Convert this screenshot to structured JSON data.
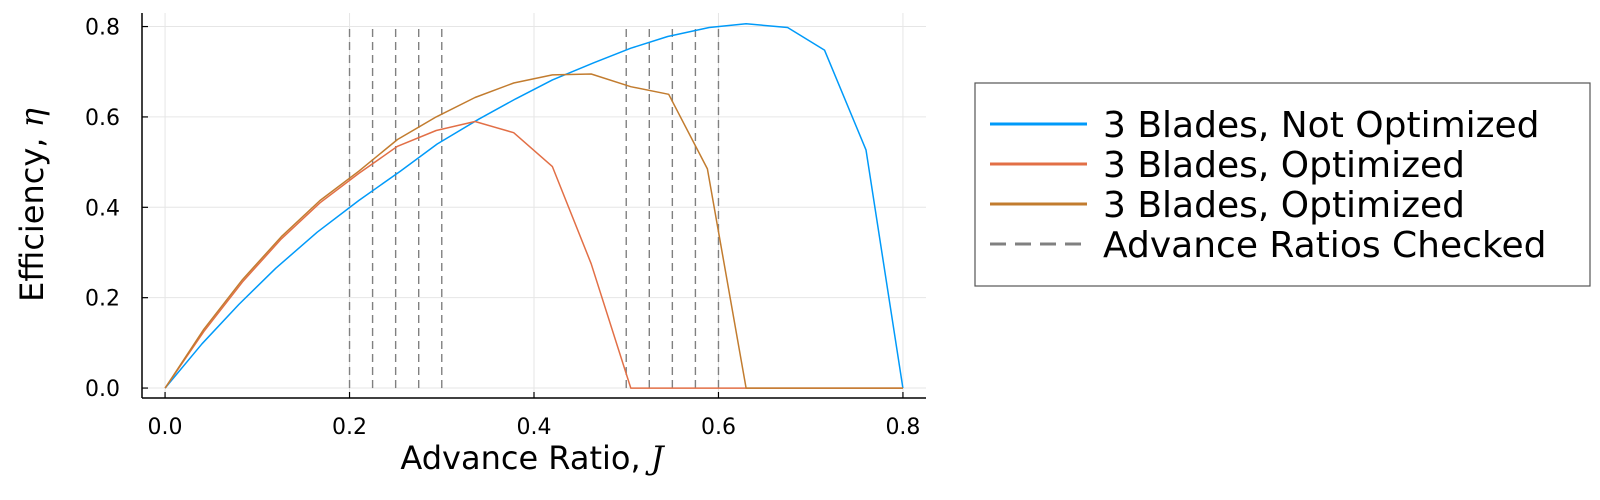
{
  "chart_data": {
    "type": "line",
    "xlabel": "Advance Ratio, ",
    "xlabel_symbol": "J",
    "ylabel": "Efficiency, ",
    "ylabel_symbol": "η",
    "xlim": [
      -0.025,
      0.825
    ],
    "ylim": [
      -0.022,
      0.83
    ],
    "xticks": [
      0.0,
      0.2,
      0.4,
      0.6,
      0.8
    ],
    "xtick_labels": [
      "0.0",
      "0.2",
      "0.4",
      "0.6",
      "0.8"
    ],
    "yticks": [
      0.0,
      0.2,
      0.4,
      0.6,
      0.8
    ],
    "ytick_labels": [
      "0.0",
      "0.2",
      "0.4",
      "0.6",
      "0.8"
    ],
    "grid": true,
    "legend_position": "outside-right",
    "series": [
      {
        "name": "3 Blades, Not Optimized",
        "color": "#009af9",
        "style": "solid",
        "x": [
          0.0,
          0.04,
          0.08,
          0.12,
          0.165,
          0.21,
          0.255,
          0.295,
          0.34,
          0.38,
          0.42,
          0.465,
          0.505,
          0.545,
          0.59,
          0.63,
          0.675,
          0.715,
          0.76,
          0.8
        ],
        "y": [
          0.0,
          0.098,
          0.185,
          0.265,
          0.345,
          0.415,
          0.48,
          0.54,
          0.595,
          0.64,
          0.682,
          0.72,
          0.752,
          0.778,
          0.798,
          0.806,
          0.798,
          0.748,
          0.527,
          0.0
        ]
      },
      {
        "name": "3 Blades, Optimized",
        "color": "#e26f46",
        "style": "solid",
        "x": [
          0.0,
          0.042,
          0.084,
          0.126,
          0.168,
          0.21,
          0.252,
          0.294,
          0.336,
          0.378,
          0.42,
          0.462,
          0.505,
          0.55,
          0.6,
          0.65,
          0.7,
          0.75,
          0.8
        ],
        "y": [
          0.0,
          0.125,
          0.235,
          0.33,
          0.41,
          0.475,
          0.535,
          0.57,
          0.59,
          0.565,
          0.49,
          0.275,
          0.0,
          0.0,
          0.0,
          0.0,
          0.0,
          0.0,
          0.0
        ]
      },
      {
        "name": "3 Blades, Optimized",
        "color": "#c27c2f",
        "style": "solid",
        "x": [
          0.0,
          0.042,
          0.084,
          0.126,
          0.168,
          0.21,
          0.252,
          0.294,
          0.336,
          0.378,
          0.42,
          0.462,
          0.505,
          0.546,
          0.588,
          0.63,
          0.68,
          0.74,
          0.8
        ],
        "y": [
          0.0,
          0.13,
          0.24,
          0.335,
          0.415,
          0.48,
          0.55,
          0.6,
          0.643,
          0.675,
          0.693,
          0.695,
          0.667,
          0.65,
          0.485,
          0.0,
          0.0,
          0.0,
          0.0
        ]
      }
    ],
    "vlines": {
      "name": "Advance Ratios Checked",
      "color": "#808080",
      "style": "dashed",
      "x": [
        0.2,
        0.225,
        0.25,
        0.275,
        0.3,
        0.5,
        0.525,
        0.55,
        0.575,
        0.6
      ],
      "ymax": 0.8
    }
  }
}
